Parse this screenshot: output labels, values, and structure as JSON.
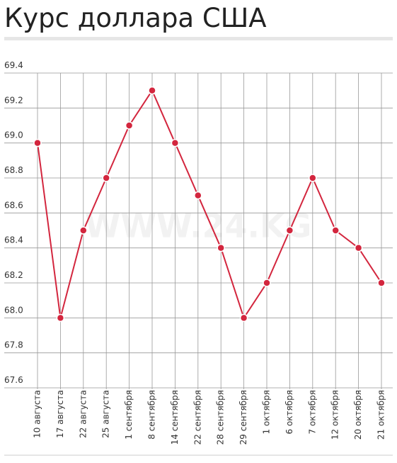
{
  "chart_data": {
    "type": "line",
    "title": "Курс доллара США",
    "watermark": "WWW.24.KG",
    "categories": [
      "10 августа",
      "17 августа",
      "22 августа",
      "25 августа",
      "1 сентября",
      "8 сентября",
      "14 сентября",
      "22 сентября",
      "28 сентября",
      "29 сентября",
      "1 октября",
      "6 октября",
      "7 октября",
      "12 октября",
      "20 октября",
      "21 октября"
    ],
    "series": [
      {
        "color": "#d3263e",
        "values": [
          69.0,
          68.0,
          68.5,
          68.8,
          69.1,
          69.3,
          69.0,
          68.7,
          68.4,
          68.0,
          68.2,
          68.5,
          68.8,
          68.5,
          68.4,
          68.2
        ]
      }
    ],
    "ylim": [
      67.6,
      69.4
    ],
    "yticks": [
      67.6,
      67.8,
      {
        "value": 68,
        "label": "68.0"
      },
      68.2,
      68.4,
      68.6,
      68.8,
      {
        "value": 69,
        "label": "69.0"
      },
      69.2,
      69.4
    ],
    "grid": true
  }
}
